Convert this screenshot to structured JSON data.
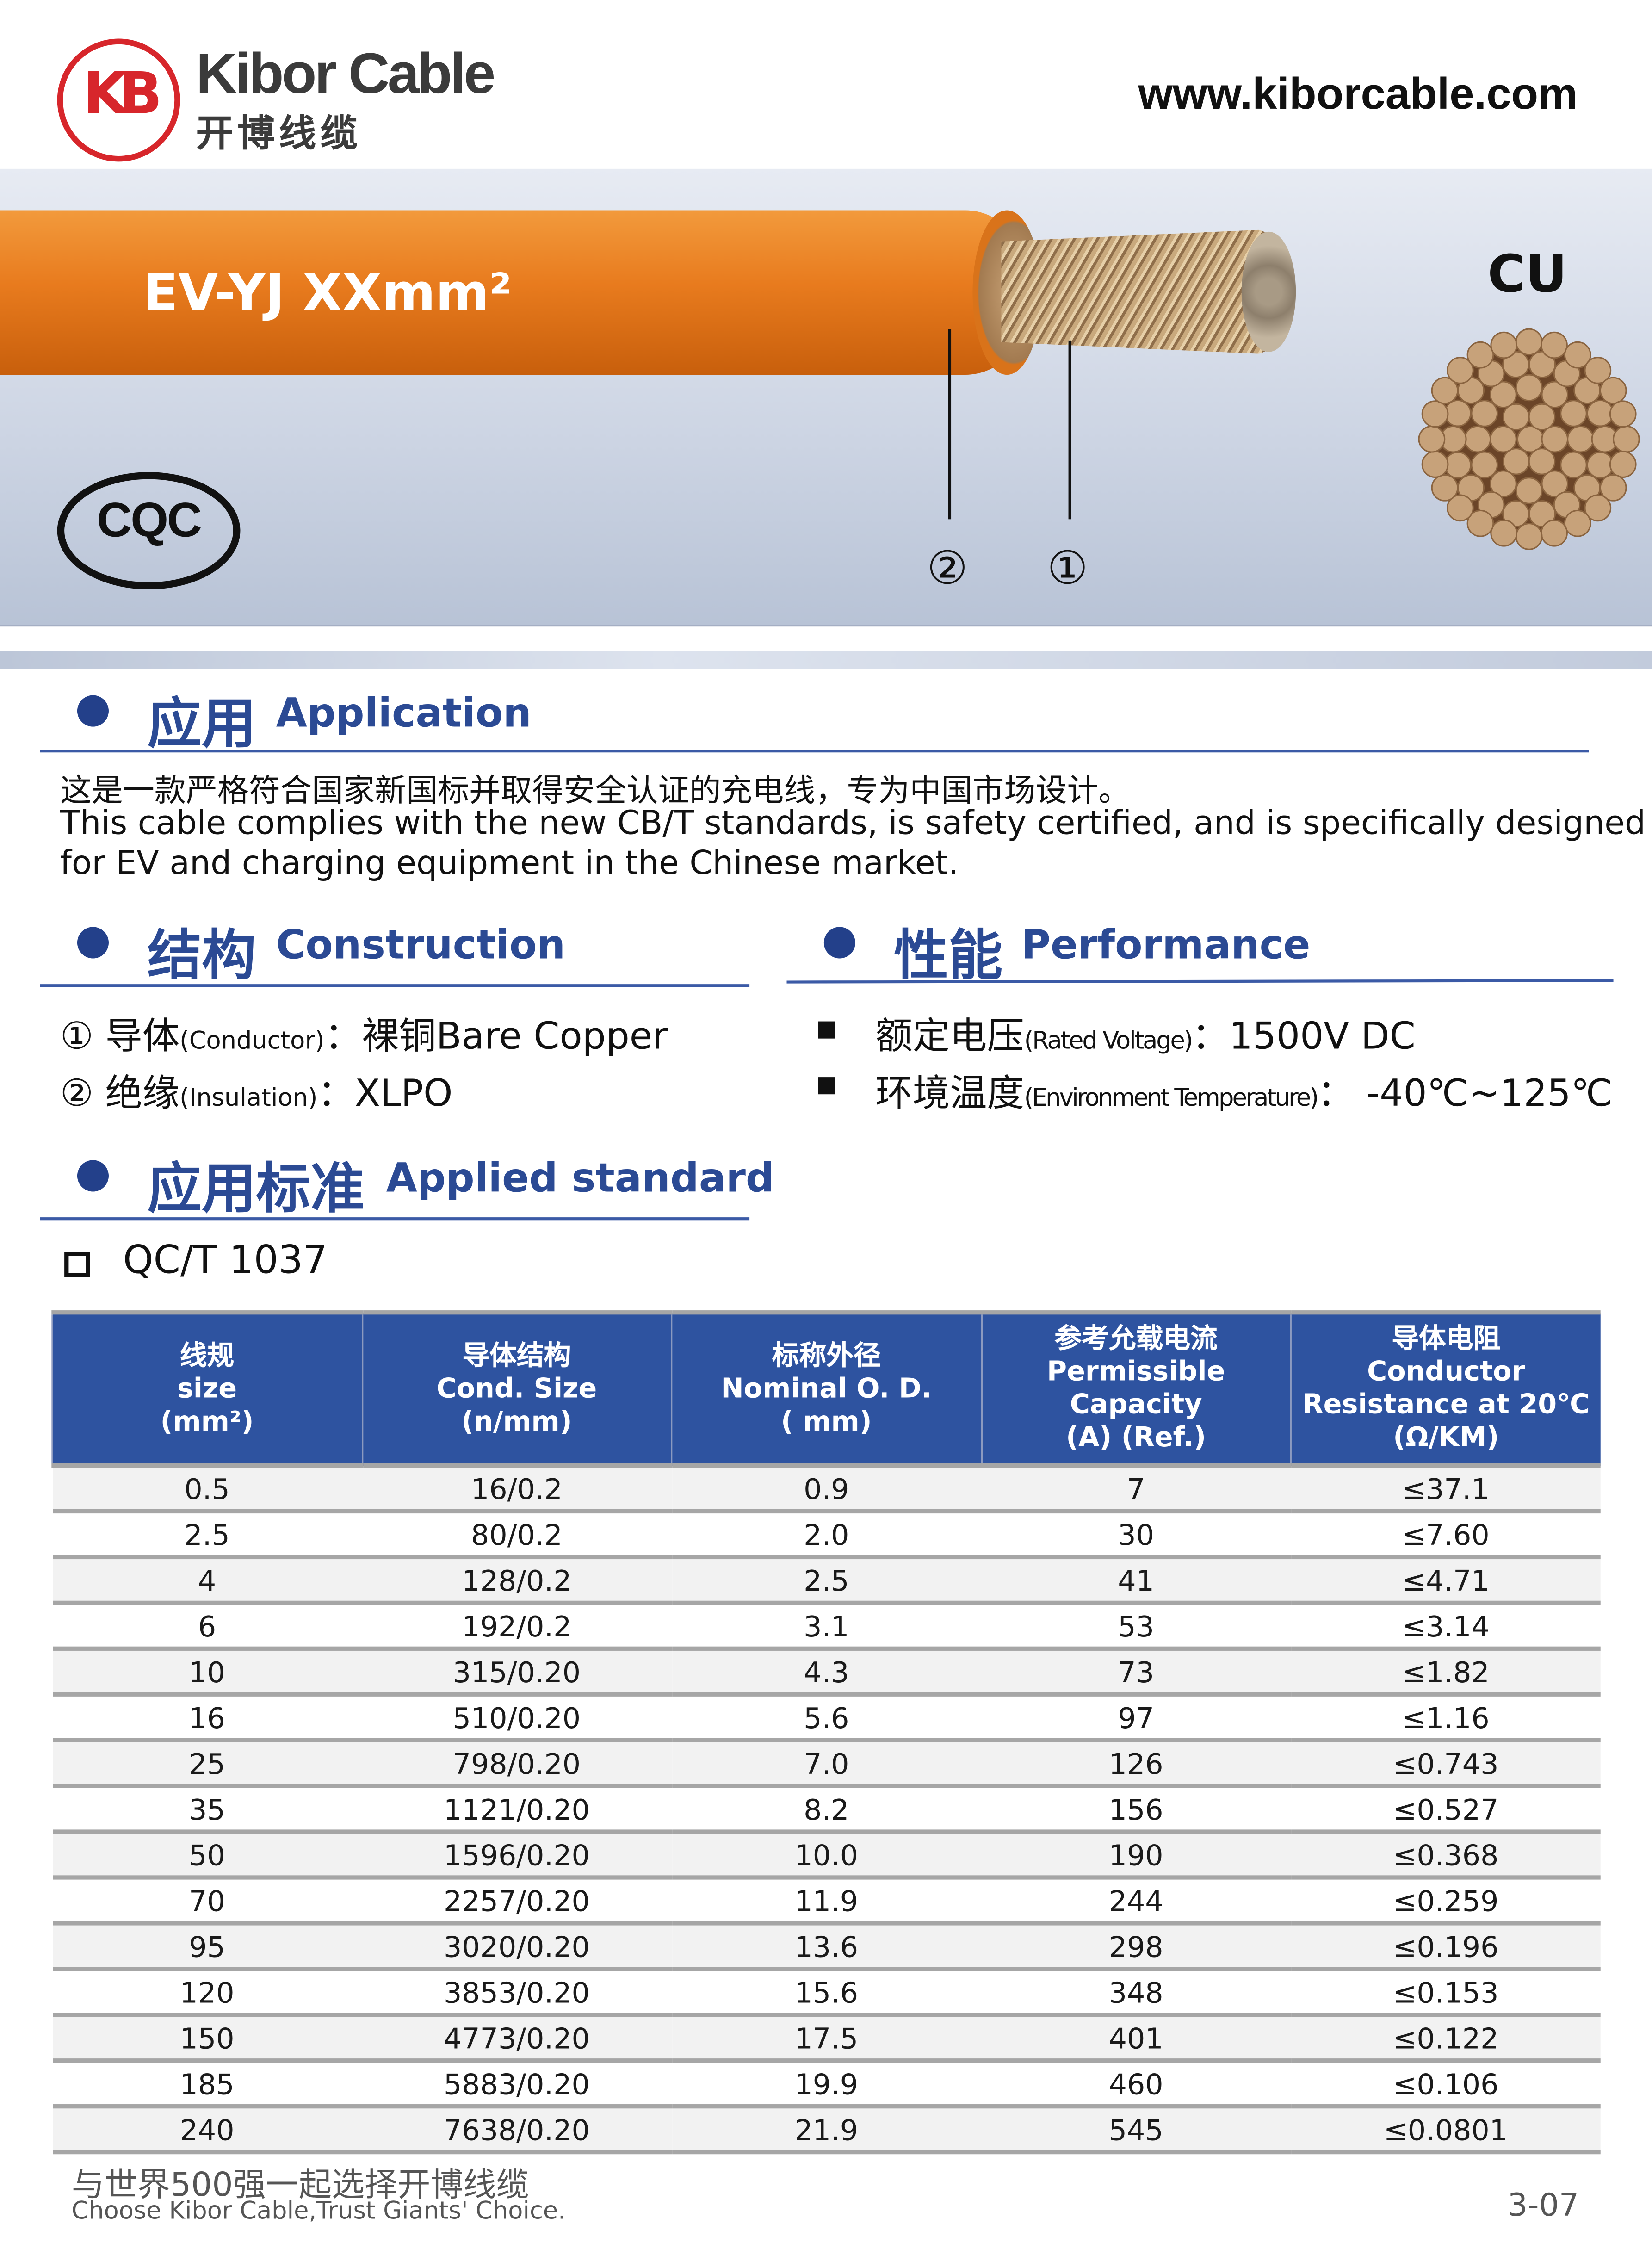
{
  "header": {
    "logo_mark": "KB",
    "brand": "Kibor Cable",
    "brand_cn": "开博线缆",
    "url": "www.kiborcable.com"
  },
  "banner": {
    "cable_label": "EV-YJ XXmm²",
    "callouts": [
      "②",
      "①"
    ],
    "material": "CU",
    "cert_logo": "CQC",
    "colors": {
      "jacket": "#e87b1e",
      "conductor": "#c9a97d"
    }
  },
  "application": {
    "title_cn": "应用",
    "title_en": "Application",
    "text_cn": "这是一款严格符合国家新国标并取得安全认证的充电线，专为中国市场设计。",
    "text_en_1": "This cable complies with the new CB/T standards, is safety certified, and is specifically designed",
    "text_en_2": "for EV and charging equipment in the Chinese market."
  },
  "construction": {
    "title_cn": "结构",
    "title_en": "Construction",
    "items": [
      {
        "num": "①",
        "label_cn": "导体",
        "label_en": "(Conductor)",
        "sep": "：",
        "value": "裸铜Bare Copper"
      },
      {
        "num": "②",
        "label_cn": "绝缘",
        "label_en": "(Insulation)",
        "sep": "：",
        "value": "XLPO"
      }
    ]
  },
  "performance": {
    "title_cn": "性能",
    "title_en": "Performance",
    "items": [
      {
        "label_cn": "额定电压",
        "label_en": "(Rated Voltage)",
        "sep": "：",
        "value": "1500V DC"
      },
      {
        "label_cn": "环境温度",
        "label_en": "(Environment Temperature)",
        "sep": "：",
        "value": "-40℃~125℃"
      }
    ]
  },
  "standard": {
    "title_cn": "应用标准",
    "title_en": "Applied standard",
    "items": [
      "QC/T 1037"
    ]
  },
  "table": {
    "headers": [
      [
        "线规",
        "size",
        "(mm²)"
      ],
      [
        "导体结构",
        "Cond. Size",
        "(n/mm)"
      ],
      [
        "标称外径",
        "Nominal O. D.",
        "( mm)"
      ],
      [
        "参考允载电流",
        "Permissible Capacity",
        "(A)    (Ref.)"
      ],
      [
        "导体电阻",
        "Conductor",
        "Resistance at 20℃",
        "(Ω/KM)"
      ]
    ],
    "rows": [
      [
        "0.5",
        "16/0.2",
        "0.9",
        "7",
        "≤37.1"
      ],
      [
        "2.5",
        "80/0.2",
        "2.0",
        "30",
        "≤7.60"
      ],
      [
        "4",
        "128/0.2",
        "2.5",
        "41",
        "≤4.71"
      ],
      [
        "6",
        "192/0.2",
        "3.1",
        "53",
        "≤3.14"
      ],
      [
        "10",
        "315/0.20",
        "4.3",
        "73",
        "≤1.82"
      ],
      [
        "16",
        "510/0.20",
        "5.6",
        "97",
        "≤1.16"
      ],
      [
        "25",
        "798/0.20",
        "7.0",
        "126",
        "≤0.743"
      ],
      [
        "35",
        "1121/0.20",
        "8.2",
        "156",
        "≤0.527"
      ],
      [
        "50",
        "1596/0.20",
        "10.0",
        "190",
        "≤0.368"
      ],
      [
        "70",
        "2257/0.20",
        "11.9",
        "244",
        "≤0.259"
      ],
      [
        "95",
        "3020/0.20",
        "13.6",
        "298",
        "≤0.196"
      ],
      [
        "120",
        "3853/0.20",
        "15.6",
        "348",
        "≤0.153"
      ],
      [
        "150",
        "4773/0.20",
        "17.5",
        "401",
        "≤0.122"
      ],
      [
        "185",
        "5883/0.20",
        "19.9",
        "460",
        "≤0.106"
      ],
      [
        "240",
        "7638/0.20",
        "21.9",
        "545",
        "≤0.0801"
      ]
    ]
  },
  "footer": {
    "slogan_cn": "与世界500强一起选择开博线缆",
    "slogan_en": "Choose Kibor Cable,Trust Giants' Choice.",
    "page": "3-07"
  }
}
